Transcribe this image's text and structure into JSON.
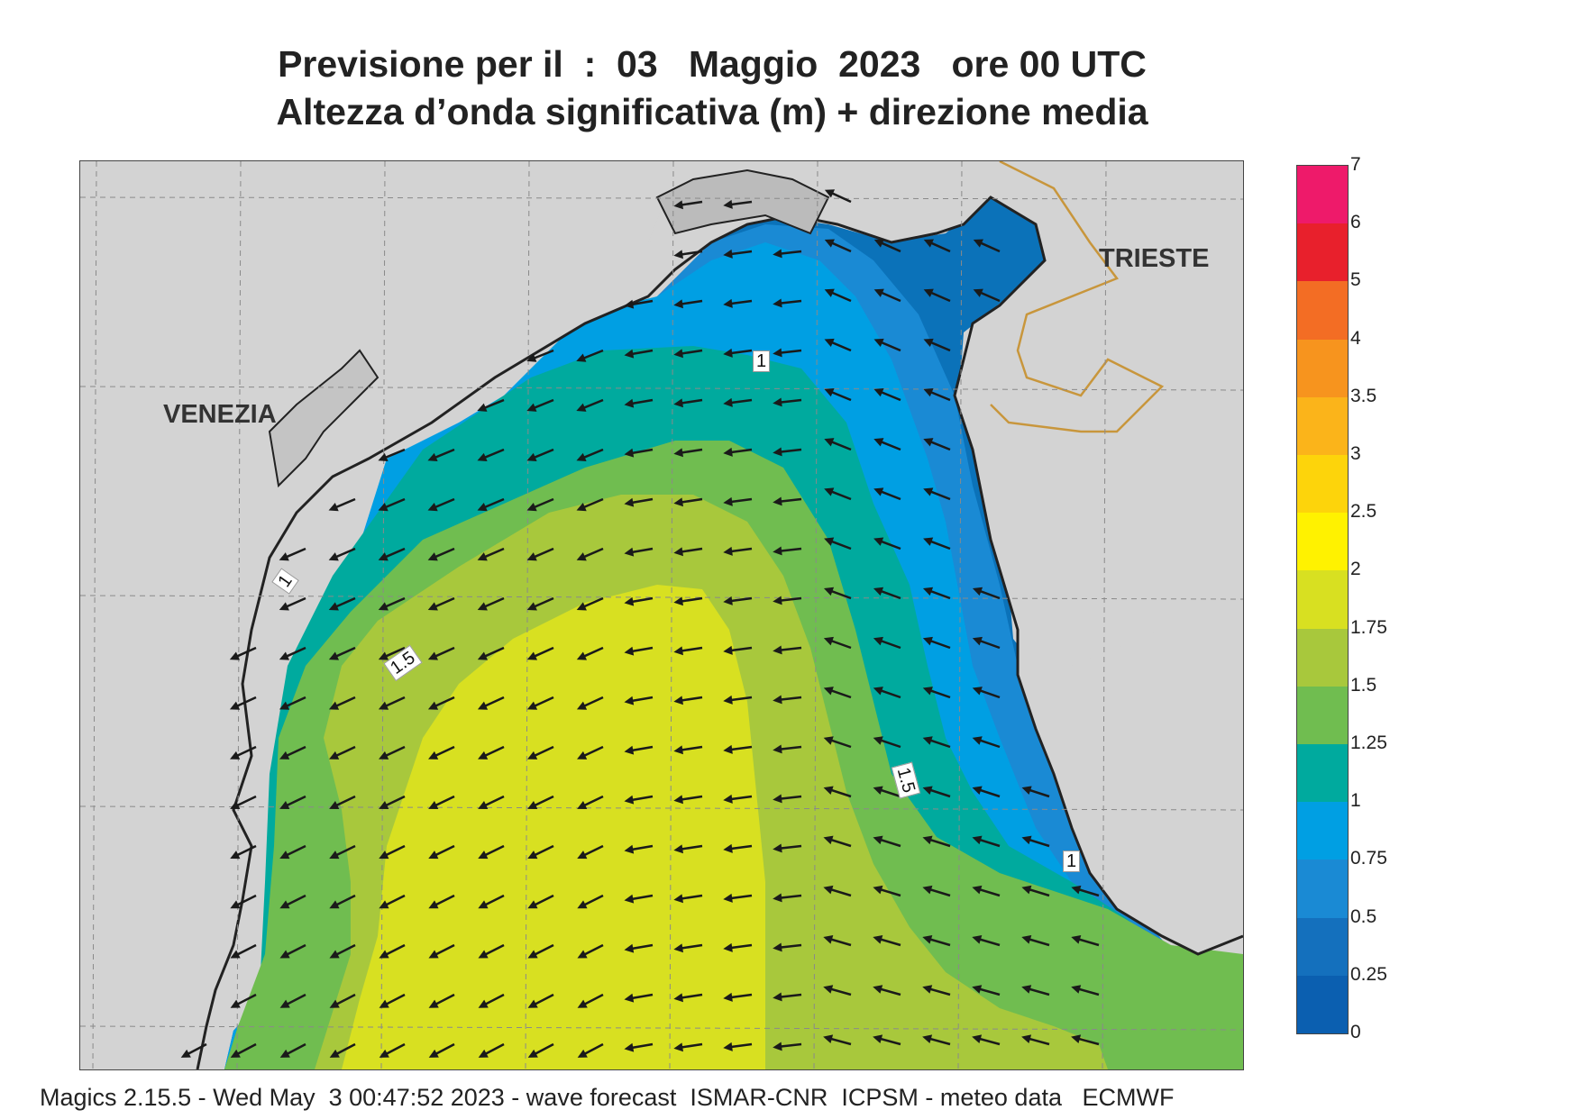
{
  "header": {
    "title_line1": "Previsione per il  :  03   Maggio  2023   ore 00 UTC",
    "title_line2": "Altezza d’onda significativa (m) + direzione media"
  },
  "map": {
    "cities": {
      "venezia": "VENEZIA",
      "trieste": "TRIESTE"
    },
    "contour_labels": [
      "1",
      "1",
      "1.5",
      "1.5",
      "1"
    ],
    "colors": {
      "land": "#d3d3d3",
      "coast": "#222222",
      "border": "#c8963c",
      "arrow": "#1a1a1a"
    }
  },
  "legend": {
    "ticks": [
      "7",
      "6",
      "5",
      "4",
      "3.5",
      "3",
      "2.5",
      "2",
      "1.75",
      "1.5",
      "1.25",
      "1",
      "0.75",
      "0.5",
      "0.25",
      "0"
    ],
    "colors": [
      "#ee1a6a",
      "#e8202c",
      "#f36d24",
      "#f7941e",
      "#fbb41a",
      "#fdd40b",
      "#fff200",
      "#d8e021",
      "#a8c83c",
      "#70bd50",
      "#00aa9e",
      "#009fe3",
      "#1a8ad4",
      "#1470bd",
      "#0b5fb0"
    ]
  },
  "footer": {
    "text": "Magics 2.15.5 - Wed May  3 00:47:52 2023 - wave forecast  ISMAR-CNR  ICPSM - meteo data   ECMWF"
  }
}
